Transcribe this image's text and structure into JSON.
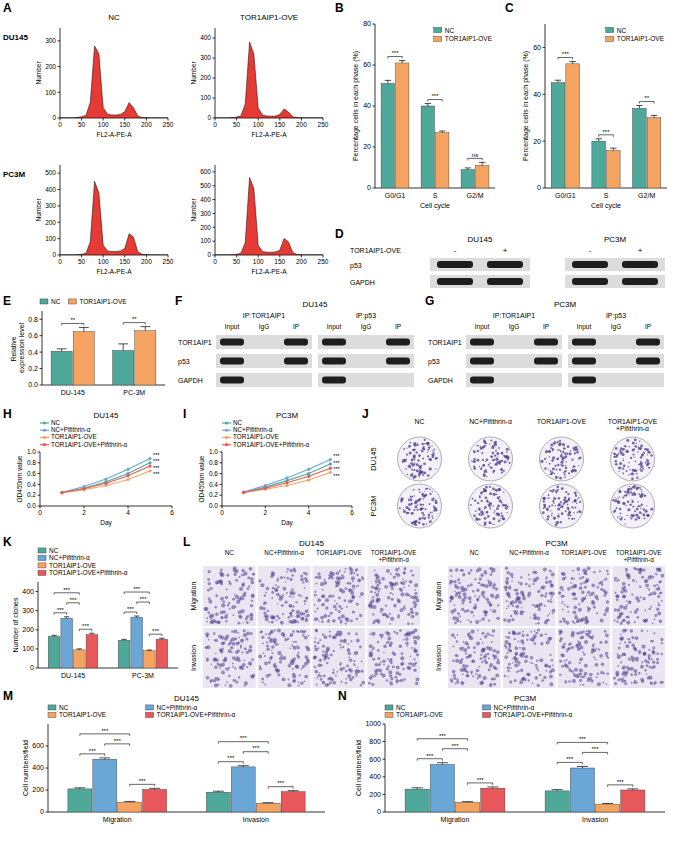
{
  "panel_letters": [
    "A",
    "B",
    "C",
    "D",
    "E",
    "F",
    "G",
    "H",
    "I",
    "J",
    "K",
    "L",
    "M",
    "N"
  ],
  "A": {
    "columns": [
      "NC",
      "TOR1AIP1-OVE"
    ],
    "rows": [
      "DU145",
      "PC3M"
    ]
  },
  "chart_data": [
    {
      "type": "area",
      "x": [
        0,
        10,
        20,
        30,
        40,
        50,
        60,
        70,
        80,
        90,
        100,
        110,
        120,
        130,
        140,
        150,
        160,
        170,
        180,
        190,
        200,
        210,
        220,
        230,
        240,
        250
      ],
      "values": [
        0,
        0,
        0,
        0,
        2,
        5,
        10,
        60,
        280,
        250,
        40,
        15,
        12,
        12,
        14,
        25,
        60,
        40,
        8,
        2,
        1,
        0,
        0,
        0,
        0,
        0
      ],
      "xlim": [
        0,
        250
      ],
      "xticks": [
        0,
        50,
        100,
        150,
        200,
        250
      ],
      "ylim": [
        0,
        350
      ],
      "yticks": [
        0,
        100,
        200,
        300
      ],
      "x_label": "FL2-A-PE-A",
      "y_label": "Number",
      "color": "#e3261e"
    },
    {
      "type": "area",
      "x": [
        0,
        10,
        20,
        30,
        40,
        50,
        60,
        70,
        80,
        90,
        100,
        110,
        120,
        130,
        140,
        150,
        160,
        170,
        180,
        190,
        200,
        210,
        220,
        230,
        240,
        250
      ],
      "values": [
        0,
        0,
        0,
        0,
        2,
        5,
        10,
        70,
        380,
        320,
        50,
        15,
        10,
        9,
        10,
        18,
        45,
        30,
        6,
        2,
        1,
        0,
        0,
        0,
        0,
        0
      ],
      "xlim": [
        0,
        250
      ],
      "xticks": [
        0,
        50,
        100,
        150,
        200,
        250
      ],
      "ylim": [
        0,
        450
      ],
      "yticks": [
        0,
        100,
        200,
        300,
        400
      ],
      "x_label": "FL2-A-PE-A",
      "y_label": "Number",
      "color": "#e3261e"
    },
    {
      "type": "area",
      "x": [
        0,
        10,
        20,
        30,
        40,
        50,
        60,
        70,
        80,
        90,
        100,
        110,
        120,
        130,
        140,
        150,
        160,
        170,
        180,
        190,
        200,
        210,
        220,
        230,
        240,
        250
      ],
      "values": [
        0,
        0,
        0,
        0,
        2,
        5,
        10,
        80,
        450,
        380,
        60,
        25,
        22,
        22,
        25,
        40,
        130,
        110,
        20,
        4,
        1,
        0,
        0,
        0,
        0,
        0
      ],
      "xlim": [
        0,
        250
      ],
      "xticks": [
        0,
        50,
        100,
        150,
        200,
        250
      ],
      "ylim": [
        0,
        550
      ],
      "yticks": [
        0,
        100,
        200,
        300,
        400,
        500
      ],
      "x_label": "FL2-A-PE-A",
      "y_label": "Number",
      "color": "#e3261e"
    },
    {
      "type": "area",
      "x": [
        0,
        10,
        20,
        30,
        40,
        50,
        60,
        70,
        80,
        90,
        100,
        110,
        120,
        130,
        140,
        150,
        160,
        170,
        180,
        190,
        200,
        210,
        220,
        230,
        240,
        250
      ],
      "values": [
        0,
        0,
        0,
        0,
        2,
        5,
        12,
        90,
        560,
        480,
        70,
        25,
        20,
        20,
        22,
        35,
        120,
        95,
        18,
        3,
        1,
        0,
        0,
        0,
        0,
        0
      ],
      "xlim": [
        0,
        250
      ],
      "xticks": [
        0,
        50,
        100,
        150,
        200,
        250
      ],
      "ylim": [
        0,
        650
      ],
      "yticks": [
        0,
        100,
        200,
        300,
        400,
        500,
        600
      ],
      "x_label": "FL2-A-PE-A",
      "y_label": "Number",
      "color": "#e3261e"
    },
    {
      "type": "bar",
      "categories": [
        "G0/G1",
        "S",
        "G2/M"
      ],
      "series": [
        {
          "name": "NC",
          "color": "#4fa99a",
          "values": [
            51,
            40,
            9
          ],
          "errors": [
            1.5,
            1.2,
            0.8
          ]
        },
        {
          "name": "TOR1AIP1-OVE",
          "color": "#f4a460",
          "values": [
            61,
            27,
            11
          ],
          "errors": [
            1.2,
            0.8,
            1.5
          ]
        }
      ],
      "ylim": [
        0,
        80
      ],
      "yticks": [
        0,
        20,
        40,
        60,
        80
      ],
      "y_label": "Percentage cells in each phase (%)",
      "x_label": "Cell cycle",
      "significance": [
        "***",
        "***",
        "ns"
      ],
      "legend": "upper right"
    },
    {
      "type": "bar",
      "categories": [
        "G0/G1",
        "S",
        "G2/M"
      ],
      "series": [
        {
          "name": "NC",
          "color": "#4fa99a",
          "values": [
            45,
            20,
            34
          ],
          "errors": [
            1,
            1,
            1.2
          ]
        },
        {
          "name": "TOR1AIP1-OVE",
          "color": "#f4a460",
          "values": [
            53,
            16,
            30
          ],
          "errors": [
            1,
            1,
            1
          ]
        }
      ],
      "ylim": [
        0,
        70
      ],
      "yticks": [
        0,
        20,
        40,
        60
      ],
      "y_label": "Percentage cells in each phase (%)",
      "x_label": "Cell cycle",
      "significance": [
        "***",
        "***",
        "**"
      ],
      "legend": "upper right"
    },
    {
      "type": "bar",
      "categories": [
        "DU-145",
        "PC-3M"
      ],
      "series": [
        {
          "name": "NC",
          "color": "#4fa99a",
          "values": [
            0.41,
            0.42
          ],
          "errors": [
            0.03,
            0.08
          ]
        },
        {
          "name": "TOR1AIP1-OVE",
          "color": "#f4a460",
          "values": [
            0.65,
            0.66
          ],
          "errors": [
            0.05,
            0.05
          ]
        }
      ],
      "ylim": [
        0,
        0.9
      ],
      "yticks": [
        {
          "value": 0,
          "label": "0.0"
        },
        {
          "value": 0.2,
          "label": "0.2"
        },
        {
          "value": 0.4,
          "label": "0.4"
        },
        {
          "value": 0.6,
          "label": "0.6"
        },
        {
          "value": 0.8,
          "label": "0.8"
        }
      ],
      "y_label": "Relative expression level",
      "significance": [
        "**",
        "**"
      ],
      "legend": "top"
    },
    {
      "type": "line",
      "title": "DU145",
      "x": [
        1,
        2,
        3,
        4,
        5
      ],
      "series": [
        {
          "name": "NC",
          "color": "#4fa99a",
          "marker": "circle",
          "values": [
            0.25,
            0.33,
            0.45,
            0.6,
            0.8
          ]
        },
        {
          "name": "NC+Pifithrin-α",
          "color": "#6aa6d6",
          "marker": "circle",
          "values": [
            0.25,
            0.36,
            0.5,
            0.68,
            0.88
          ]
        },
        {
          "name": "TOR1AIP1-OVE",
          "color": "#f4a460",
          "marker": "circle",
          "values": [
            0.24,
            0.3,
            0.38,
            0.49,
            0.65
          ]
        },
        {
          "name": "TOR1AIP1-OVE+Pifithrin-α",
          "color": "#e8575a",
          "marker": "circle",
          "values": [
            0.25,
            0.32,
            0.42,
            0.56,
            0.74
          ]
        }
      ],
      "xlim": [
        0,
        6
      ],
      "xticks": [
        0,
        2,
        4,
        6
      ],
      "ylim": [
        0,
        1
      ],
      "yticks": [
        {
          "value": 0,
          "label": "0.0"
        },
        {
          "value": 0.2,
          "label": "0.2"
        },
        {
          "value": 0.4,
          "label": "0.4"
        },
        {
          "value": 0.6,
          "label": "0.6"
        },
        {
          "value": 0.8,
          "label": "0.8"
        },
        {
          "value": 1,
          "label": "1.0"
        }
      ],
      "x_label": "Day",
      "y_label": "OD450nm value",
      "significance": [
        "***",
        "***",
        "***",
        "***"
      ],
      "legend": "top"
    },
    {
      "type": "line",
      "title": "PC3M",
      "x": [
        1,
        2,
        3,
        4,
        5
      ],
      "series": [
        {
          "name": "NC",
          "color": "#4fa99a",
          "marker": "circle",
          "values": [
            0.25,
            0.35,
            0.47,
            0.6,
            0.78
          ]
        },
        {
          "name": "NC+Pifithrin-α",
          "color": "#6aa6d6",
          "marker": "circle",
          "values": [
            0.26,
            0.38,
            0.52,
            0.68,
            0.86
          ]
        },
        {
          "name": "TOR1AIP1-OVE",
          "color": "#f4a460",
          "marker": "circle",
          "values": [
            0.25,
            0.31,
            0.38,
            0.48,
            0.62
          ]
        },
        {
          "name": "TOR1AIP1-OVE+Pifithrin-α",
          "color": "#e8575a",
          "marker": "circle",
          "values": [
            0.25,
            0.33,
            0.43,
            0.55,
            0.7
          ]
        }
      ],
      "xlim": [
        0,
        6
      ],
      "xticks": [
        0,
        2,
        4,
        6
      ],
      "ylim": [
        0,
        1
      ],
      "yticks": [
        {
          "value": 0,
          "label": "0.0"
        },
        {
          "value": 0.2,
          "label": "0.2"
        },
        {
          "value": 0.4,
          "label": "0.4"
        },
        {
          "value": 0.6,
          "label": "0.6"
        },
        {
          "value": 0.8,
          "label": "0.8"
        },
        {
          "value": 1,
          "label": "1.0"
        }
      ],
      "x_label": "Day",
      "y_label": "OD450nm value",
      "significance": [
        "***",
        "***",
        "***",
        "***"
      ],
      "legend": "top"
    },
    {
      "type": "bar",
      "categories": [
        "DU-145",
        "PC-3M"
      ],
      "series": [
        {
          "name": "NC",
          "color": "#4fa99a",
          "values": [
            165,
            145
          ],
          "errors": [
            6,
            5
          ]
        },
        {
          "name": "NC+Pifithrin-α",
          "color": "#6aa6d6",
          "values": [
            260,
            265
          ],
          "errors": [
            8,
            7
          ]
        },
        {
          "name": "TOR1AIP1-OVE",
          "color": "#f4a460",
          "values": [
            95,
            90
          ],
          "errors": [
            5,
            4
          ]
        },
        {
          "name": "TOR1AIP1-OVE+Pifithrin-α",
          "color": "#e8575a",
          "values": [
            175,
            150
          ],
          "errors": [
            7,
            6
          ]
        }
      ],
      "ylim": [
        0,
        450
      ],
      "yticks": [
        0,
        100,
        200,
        300,
        400
      ],
      "y_label": "Number of clones",
      "significance": [
        [
          "***",
          "***",
          "***",
          "***"
        ],
        [
          "***",
          "***",
          "***",
          "***"
        ]
      ],
      "legend": "top"
    },
    {
      "type": "bar",
      "title": "DU145",
      "categories": [
        "Migration",
        "Invasion"
      ],
      "series": [
        {
          "name": "NC",
          "color": "#4fa99a",
          "values": [
            210,
            180
          ],
          "errors": [
            10,
            9
          ]
        },
        {
          "name": "NC+Pifithrin-α",
          "color": "#6aa6d6",
          "values": [
            480,
            410
          ],
          "errors": [
            12,
            11
          ]
        },
        {
          "name": "TOR1AIP1-OVE",
          "color": "#f4a460",
          "values": [
            90,
            80
          ],
          "errors": [
            6,
            5
          ]
        },
        {
          "name": "TOR1AIP1-OVE+Pifithrin-α",
          "color": "#e8575a",
          "values": [
            205,
            185
          ],
          "errors": [
            10,
            9
          ]
        }
      ],
      "ylim": [
        0,
        800
      ],
      "yticks": [
        0,
        200,
        400,
        600
      ],
      "y_label": "Cell numbers/field",
      "significance": [
        [
          "***",
          "***",
          "***",
          "***"
        ],
        [
          "***",
          "***",
          "***",
          "***"
        ]
      ],
      "legend": "top"
    },
    {
      "type": "bar",
      "title": "PC3M",
      "categories": [
        "Migration",
        "Invasion"
      ],
      "series": [
        {
          "name": "NC",
          "color": "#4fa99a",
          "values": [
            260,
            240
          ],
          "errors": [
            15,
            14
          ]
        },
        {
          "name": "NC+Pifithrin-α",
          "color": "#6aa6d6",
          "values": [
            540,
            500
          ],
          "errors": [
            20,
            18
          ]
        },
        {
          "name": "TOR1AIP1-OVE",
          "color": "#f4a460",
          "values": [
            110,
            90
          ],
          "errors": [
            8,
            7
          ]
        },
        {
          "name": "TOR1AIP1-OVE+Pifithrin-α",
          "color": "#e8575a",
          "values": [
            270,
            250
          ],
          "errors": [
            15,
            13
          ]
        }
      ],
      "ylim": [
        0,
        1000
      ],
      "yticks": [
        0,
        200,
        400,
        600,
        800,
        1000
      ],
      "y_label": "Cell numbers/field",
      "significance": [
        [
          "***",
          "***",
          "***",
          "***"
        ],
        [
          "***",
          "***",
          "***",
          "***"
        ]
      ],
      "legend": "top"
    }
  ],
  "D": {
    "groups": [
      "DU145",
      "PC3M"
    ],
    "row_label": "TOR1AIP1-OVE",
    "signs": [
      "-",
      "+",
      "-",
      "+"
    ],
    "rows": [
      "p53",
      "GAPDH"
    ]
  },
  "F": {
    "title": "DU145",
    "rows": [
      "TOR1AIP1",
      "p53",
      "GAPDH"
    ],
    "blocks": [
      {
        "title": "IP:TOR1AIP1",
        "lanes": [
          "Input",
          "IgG",
          "IP"
        ],
        "bands": [
          [
            true,
            false,
            true
          ],
          [
            true,
            false,
            true
          ],
          [
            true,
            false,
            false
          ]
        ]
      },
      {
        "title": "IP:p53",
        "lanes": [
          "Input",
          "IgG",
          "IP"
        ],
        "bands": [
          [
            true,
            false,
            true
          ],
          [
            true,
            false,
            true
          ],
          [
            true,
            false,
            false
          ]
        ]
      }
    ]
  },
  "G": {
    "title": "PC3M",
    "rows": [
      "TOR1AIP1",
      "p53",
      "GAPDH"
    ],
    "blocks": [
      {
        "title": "IP:TOR1AIP1",
        "lanes": [
          "Input",
          "IgG",
          "IP"
        ],
        "bands": [
          [
            true,
            false,
            true
          ],
          [
            true,
            false,
            true
          ],
          [
            true,
            false,
            false
          ]
        ]
      },
      {
        "title": "IP:p53",
        "lanes": [
          "Input",
          "IgG",
          "IP"
        ],
        "bands": [
          [
            true,
            false,
            true
          ],
          [
            true,
            false,
            true
          ],
          [
            true,
            false,
            false
          ]
        ]
      }
    ]
  },
  "J": {
    "columns": [
      "NC",
      "NC+Pifithrin-α",
      "TOR1AIP1-OVE",
      "TOR1AIP1-OVE+Pifithrin-α"
    ],
    "rows": [
      "DU145",
      "PC3M"
    ]
  },
  "L": {
    "panels": [
      "DU145",
      "PC3M"
    ],
    "columns": [
      "NC",
      "NC+Pifithrin-α",
      "TOR1AIP1-OVE",
      "TOR1AIP1-OVE+Pifithrin-α"
    ],
    "rows": [
      "Migration",
      "Invasion"
    ]
  }
}
